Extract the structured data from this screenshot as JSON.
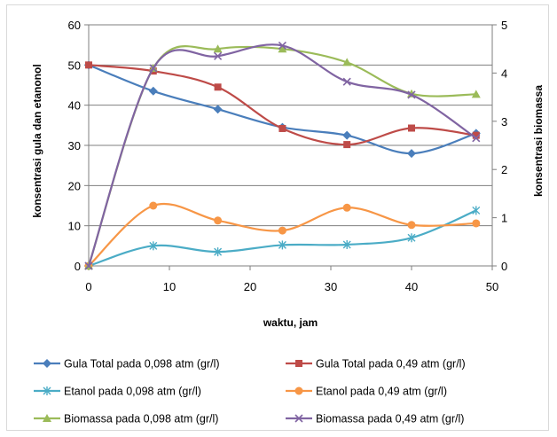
{
  "chart_data": {
    "type": "line",
    "title": "",
    "xlabel": "waktu, jam",
    "ylabel": "konsentrasi gula dan etanonol",
    "y2label": "konsentrasi biomassa",
    "xlim": [
      0,
      50
    ],
    "ylim": [
      0,
      60
    ],
    "y2lim": [
      0,
      5
    ],
    "x_ticks": [
      0,
      10,
      20,
      30,
      40,
      50
    ],
    "y_ticks": [
      0,
      10,
      20,
      30,
      40,
      50,
      60
    ],
    "y2_ticks": [
      0,
      1,
      2,
      3,
      4,
      5
    ],
    "grid": "horizontal",
    "legend_position": "bottom",
    "series": [
      {
        "name": "Gula Total pada 0,098 atm (gr/l)",
        "axis": "left",
        "marker": "diamond",
        "color": "#4a7ebb",
        "x": [
          0,
          8,
          16,
          24,
          32,
          40,
          48
        ],
        "values": [
          50,
          43.5,
          39,
          34.5,
          32.5,
          28,
          33
        ]
      },
      {
        "name": "Gula Total pada 0,49 atm (gr/l)",
        "axis": "left",
        "marker": "square",
        "color": "#be4b48",
        "x": [
          0,
          8,
          16,
          24,
          32,
          40,
          48
        ],
        "values": [
          50,
          48.5,
          44.5,
          34.2,
          30.2,
          34.3,
          32.5
        ]
      },
      {
        "name": "Etanol pada 0,098 atm (gr/l)",
        "axis": "left",
        "marker": "asterisk",
        "color": "#4bacc6",
        "x": [
          0,
          8,
          16,
          24,
          32,
          40,
          48
        ],
        "values": [
          0,
          5,
          3.5,
          5.2,
          5.3,
          7,
          13.8
        ]
      },
      {
        "name": "Etanol pada 0,49 atm (gr/l)",
        "axis": "left",
        "marker": "circle",
        "color": "#f79646",
        "x": [
          0,
          8,
          16,
          24,
          32,
          40,
          48
        ],
        "values": [
          0,
          15,
          11.3,
          8.8,
          14.5,
          10.2,
          10.6
        ]
      },
      {
        "name": "Biomassa pada 0,098 atm (gr/l)",
        "axis": "right",
        "marker": "triangle",
        "color": "#9bbb59",
        "x": [
          0,
          8,
          16,
          24,
          32,
          40,
          48
        ],
        "values": [
          0,
          4.1,
          4.5,
          4.5,
          4.22,
          3.57,
          3.56
        ]
      },
      {
        "name": "Biomassa  pada 0,49 atm (gr/l)",
        "axis": "right",
        "marker": "x",
        "color": "#8064a2",
        "x": [
          0,
          8,
          16,
          24,
          32,
          40,
          48
        ],
        "values": [
          0,
          4.1,
          4.35,
          4.57,
          3.82,
          3.55,
          2.65
        ]
      }
    ]
  }
}
